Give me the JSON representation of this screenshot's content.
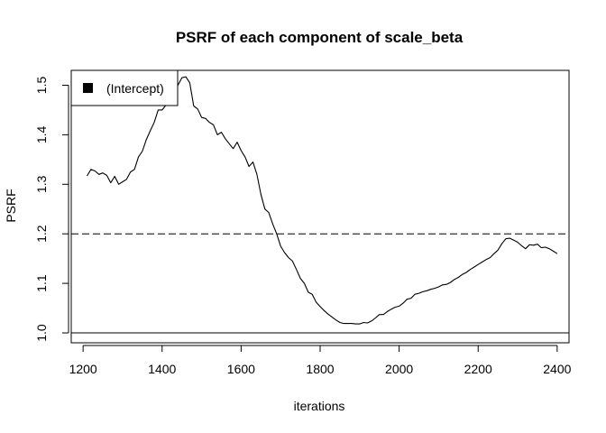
{
  "chart_data": {
    "type": "line",
    "title": "PSRF of each component of scale_beta",
    "xlabel": "iterations",
    "ylabel": "PSRF",
    "xlim": [
      1170,
      2430
    ],
    "ylim": [
      0.98,
      1.53
    ],
    "x_ticks": [
      1200,
      1400,
      1600,
      1800,
      2000,
      2200,
      2400
    ],
    "y_ticks": [
      1.0,
      1.1,
      1.2,
      1.3,
      1.4,
      1.5
    ],
    "x_tick_labels": [
      "1200",
      "1400",
      "1600",
      "1800",
      "2000",
      "2200",
      "2400"
    ],
    "y_tick_labels": [
      "1.0",
      "1.1",
      "1.2",
      "1.3",
      "1.4",
      "1.5"
    ],
    "legend": {
      "position": "top-left",
      "entries": [
        "(Intercept)"
      ]
    },
    "reference_lines": [
      {
        "y": 1.2,
        "style": "dashed"
      },
      {
        "y": 1.0,
        "style": "solid"
      }
    ],
    "series": [
      {
        "name": "(Intercept)",
        "x": [
          1210,
          1220,
          1230,
          1240,
          1250,
          1260,
          1270,
          1280,
          1290,
          1300,
          1310,
          1320,
          1330,
          1340,
          1350,
          1360,
          1370,
          1380,
          1390,
          1400,
          1410,
          1420,
          1430,
          1440,
          1450,
          1460,
          1470,
          1480,
          1490,
          1500,
          1510,
          1520,
          1530,
          1540,
          1550,
          1560,
          1570,
          1580,
          1590,
          1600,
          1610,
          1620,
          1630,
          1640,
          1650,
          1660,
          1670,
          1680,
          1690,
          1700,
          1710,
          1720,
          1730,
          1740,
          1750,
          1760,
          1770,
          1780,
          1790,
          1800,
          1810,
          1820,
          1830,
          1840,
          1850,
          1860,
          1870,
          1880,
          1890,
          1900,
          1910,
          1920,
          1930,
          1940,
          1950,
          1960,
          1970,
          1980,
          1990,
          2000,
          2010,
          2020,
          2030,
          2040,
          2050,
          2060,
          2070,
          2080,
          2090,
          2100,
          2110,
          2120,
          2130,
          2140,
          2150,
          2160,
          2170,
          2180,
          2190,
          2200,
          2210,
          2220,
          2230,
          2240,
          2250,
          2260,
          2270,
          2280,
          2290,
          2300,
          2310,
          2320,
          2330,
          2340,
          2350,
          2360,
          2370,
          2380,
          2390,
          2400
        ],
        "values": [
          1.317,
          1.33,
          1.327,
          1.32,
          1.323,
          1.318,
          1.303,
          1.316,
          1.3,
          1.305,
          1.31,
          1.325,
          1.33,
          1.355,
          1.367,
          1.39,
          1.408,
          1.425,
          1.45,
          1.45,
          1.46,
          1.478,
          1.49,
          1.5,
          1.515,
          1.517,
          1.505,
          1.458,
          1.452,
          1.435,
          1.433,
          1.425,
          1.42,
          1.4,
          1.405,
          1.392,
          1.382,
          1.372,
          1.385,
          1.368,
          1.355,
          1.336,
          1.345,
          1.32,
          1.28,
          1.25,
          1.243,
          1.22,
          1.2,
          1.175,
          1.162,
          1.152,
          1.145,
          1.128,
          1.11,
          1.1,
          1.082,
          1.078,
          1.062,
          1.053,
          1.045,
          1.038,
          1.032,
          1.026,
          1.021,
          1.019,
          1.019,
          1.019,
          1.018,
          1.018,
          1.021,
          1.02,
          1.024,
          1.03,
          1.037,
          1.037,
          1.043,
          1.048,
          1.052,
          1.054,
          1.06,
          1.068,
          1.07,
          1.078,
          1.08,
          1.083,
          1.085,
          1.088,
          1.09,
          1.093,
          1.097,
          1.098,
          1.102,
          1.108,
          1.112,
          1.118,
          1.122,
          1.128,
          1.133,
          1.138,
          1.143,
          1.148,
          1.152,
          1.16,
          1.167,
          1.18,
          1.19,
          1.191,
          1.187,
          1.183,
          1.176,
          1.17,
          1.178,
          1.177,
          1.179,
          1.172,
          1.173,
          1.17,
          1.165,
          1.16
        ]
      }
    ]
  }
}
